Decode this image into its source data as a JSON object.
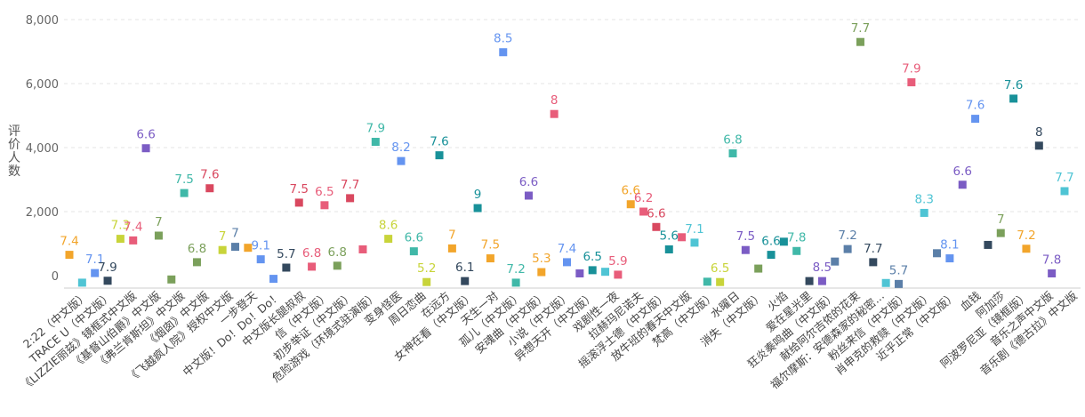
{
  "chart_data": {
    "type": "scatter",
    "ylabel": "评价人数",
    "ylim": [
      0,
      8000
    ],
    "yticks": [
      0,
      2000,
      4000,
      6000,
      8000
    ],
    "ytick_labels": [
      "0",
      "2,000",
      "4,000",
      "6,000",
      "8,000"
    ],
    "grid": true,
    "points": [
      {
        "category": "2:22（中文版）",
        "count": 650,
        "rating": "7.4",
        "color": "#f2a52b"
      },
      {
        "category": "TRACE U（中文版）",
        "count": -220,
        "rating": "",
        "color": "#4fc4d4"
      },
      {
        "category": "《LIZZIE丽兹》镜框式中文版",
        "count": 80,
        "rating": "7.1",
        "color": "#6494f0"
      },
      {
        "category": "《基督山伯爵》中文版",
        "count": -160,
        "rating": "7.9",
        "color": "#34495e"
      },
      {
        "category": "《弗兰肯斯坦》中文版",
        "count": 1150,
        "rating": "7.3",
        "color": "#c8d43a"
      },
      {
        "category": "《烟囱》中文版",
        "count": 1100,
        "rating": "7.4",
        "color": "#e85d7a"
      },
      {
        "category": "《飞越疯人院》授权中文版",
        "count": 3980,
        "rating": "6.6",
        "color": "#7b5cc4"
      },
      {
        "category": "一步登天",
        "count": 1250,
        "rating": "7",
        "color": "#7ba05b"
      },
      {
        "category": "中文版！Do！Do！Do！",
        "count": -120,
        "rating": "",
        "color": "#7ba05b"
      },
      {
        "category": "中文版长腿叔叔",
        "count": 2580,
        "rating": "7.5",
        "color": "#40b8a8"
      },
      {
        "category": "信（中文版）",
        "count": 420,
        "rating": "6.8",
        "color": "#7ba05b"
      },
      {
        "category": "初步举证（中文版）",
        "count": 2730,
        "rating": "7.6",
        "color": "#d9485f"
      },
      {
        "category": "危险游戏（环境式驻演版）",
        "count": 800,
        "rating": "7",
        "color": "#c8d43a"
      },
      {
        "category": "变身怪医",
        "count": 900,
        "rating": "7",
        "color": "#5b7fa8"
      },
      {
        "category": "周日恋曲",
        "count": 870,
        "rating": "",
        "color": "#f2a52b"
      },
      {
        "category": "在远方",
        "count": 510,
        "rating": "9.1",
        "color": "#6494f0"
      },
      {
        "category": "女神在看（中文版）",
        "count": -100,
        "rating": "",
        "color": "#6494f0"
      },
      {
        "category": "天生一对",
        "count": 250,
        "rating": "5.7",
        "color": "#34495e"
      },
      {
        "category": "孤儿（中文版）",
        "count": 2280,
        "rating": "7.5",
        "color": "#d9485f"
      },
      {
        "category": "安魂曲（中文版）",
        "count": 280,
        "rating": "6.8",
        "color": "#e85d7a"
      },
      {
        "category": "小说（中文版）",
        "count": 2200,
        "rating": "6.5",
        "color": "#e85d7a"
      },
      {
        "category": "异想天开（中文版）",
        "count": 310,
        "rating": "6.8",
        "color": "#7ba05b"
      },
      {
        "category": "戏剧性一夜",
        "count": 2420,
        "rating": "7.7",
        "color": "#d9485f"
      },
      {
        "category": "拉赫玛尼诺夫",
        "count": 820,
        "rating": "",
        "color": "#e85d7a"
      },
      {
        "category": "摇滚浮士德（中文版）",
        "count": 4180,
        "rating": "7.9",
        "color": "#40b8a8"
      },
      {
        "category": "放牛班的春天中文版",
        "count": 1150,
        "rating": "8.6",
        "color": "#c8d43a"
      },
      {
        "category": "梵高（中文版）",
        "count": 3580,
        "rating": "8.2",
        "color": "#6494f0"
      },
      {
        "category": "水曜日",
        "count": 760,
        "rating": "6.6",
        "color": "#40b8a8"
      },
      {
        "category": "消失（中文版）",
        "count": -200,
        "rating": "5.2",
        "color": "#c8d43a"
      },
      {
        "category": "火焰",
        "count": 3760,
        "rating": "7.6",
        "color": "#189199"
      },
      {
        "category": "爱在星光里",
        "count": 850,
        "rating": "7",
        "color": "#f2a52b"
      },
      {
        "category": "狂炎奏鸣曲（中文版）",
        "count": -170,
        "rating": "6.1",
        "color": "#34495e"
      },
      {
        "category": "献给阿尔吉侬的花束",
        "count": 2110,
        "rating": "9",
        "color": "#189199"
      },
      {
        "category": "福尔摩斯：安德森家的秘密...",
        "count": 540,
        "rating": "7.5",
        "color": "#f2a52b"
      },
      {
        "category": "粉丝来信（中文版）",
        "count": 6980,
        "rating": "8.5",
        "color": "#6494f0"
      },
      {
        "category": "肖申克的救赎（中文版）",
        "count": -220,
        "rating": "7.2",
        "color": "#40b8a8"
      },
      {
        "category": "近乎正常（中文版）",
        "count": 2500,
        "rating": "6.6",
        "color": "#7b5cc4"
      },
      {
        "category": "血钱",
        "count": 110,
        "rating": "5.3",
        "color": "#f2a52b"
      },
      {
        "category": "阿加莎",
        "count": 5050,
        "rating": "8",
        "color": "#e85d7a"
      },
      {
        "category": "阿波罗尼亚（镜框版）",
        "count": 420,
        "rating": "7.4",
        "color": "#6494f0"
      },
      {
        "category": "音乐之声中文版",
        "count": 70,
        "rating": "",
        "color": "#7b5cc4"
      },
      {
        "category": "音乐剧《德古拉》中文版",
        "count": 170,
        "rating": "6.5",
        "color": "#189199"
      },
      {
        "category": "",
        "count": 120,
        "rating": "",
        "color": "#4fc4d4"
      },
      {
        "category": "",
        "count": 30,
        "rating": "5.9",
        "color": "#e85d7a"
      },
      {
        "category": "",
        "count": 2230,
        "rating": "6.6",
        "color": "#f2a52b"
      },
      {
        "category": "",
        "count": 2000,
        "rating": "6.2",
        "color": "#e85d7a"
      },
      {
        "category": "",
        "count": 1520,
        "rating": "6.6",
        "color": "#d9485f"
      },
      {
        "category": "",
        "count": 820,
        "rating": "5.6",
        "color": "#189199"
      },
      {
        "category": "",
        "count": 1200,
        "rating": "",
        "color": "#e85d7a"
      },
      {
        "category": "",
        "count": 1030,
        "rating": "7.1",
        "color": "#4fc4d4"
      },
      {
        "category": "",
        "count": -190,
        "rating": "",
        "color": "#40b8a8"
      },
      {
        "category": "",
        "count": -200,
        "rating": "6.5",
        "color": "#c8d43a"
      },
      {
        "category": "",
        "count": 3820,
        "rating": "6.8",
        "color": "#40b8a8"
      },
      {
        "category": "",
        "count": 800,
        "rating": "7.5",
        "color": "#7b5cc4"
      },
      {
        "category": "",
        "count": 220,
        "rating": "",
        "color": "#7ba05b"
      },
      {
        "category": "",
        "count": 650,
        "rating": "6.6",
        "color": "#189199"
      },
      {
        "category": "",
        "count": 1060,
        "rating": "",
        "color": "#189199"
      },
      {
        "category": "",
        "count": 770,
        "rating": "7.8",
        "color": "#40b8a8"
      },
      {
        "category": "",
        "count": -170,
        "rating": "",
        "color": "#34495e"
      },
      {
        "category": "",
        "count": -170,
        "rating": "8.5",
        "color": "#7b5cc4"
      },
      {
        "category": "",
        "count": 440,
        "rating": "",
        "color": "#5b7fa8"
      },
      {
        "category": "",
        "count": 830,
        "rating": "7.2",
        "color": "#5b7fa8"
      },
      {
        "category": "",
        "count": 7300,
        "rating": "7.7",
        "color": "#7ba05b"
      },
      {
        "category": "",
        "count": 420,
        "rating": "7.7",
        "color": "#34495e"
      },
      {
        "category": "",
        "count": -230,
        "rating": "",
        "color": "#4fc4d4"
      },
      {
        "category": "",
        "count": -260,
        "rating": "5.7",
        "color": "#5b7fa8"
      },
      {
        "category": "",
        "count": 6040,
        "rating": "7.9",
        "color": "#e85d7a"
      },
      {
        "category": "",
        "count": 1960,
        "rating": "8.3",
        "color": "#4fc4d4"
      },
      {
        "category": "",
        "count": 700,
        "rating": "",
        "color": "#5b7fa8"
      },
      {
        "category": "",
        "count": 540,
        "rating": "8.1",
        "color": "#6494f0"
      },
      {
        "category": "",
        "count": 2840,
        "rating": "6.6",
        "color": "#7b5cc4"
      },
      {
        "category": "",
        "count": 4900,
        "rating": "7.6",
        "color": "#6494f0"
      },
      {
        "category": "",
        "count": 960,
        "rating": "",
        "color": "#34495e"
      },
      {
        "category": "",
        "count": 1330,
        "rating": "7",
        "color": "#7ba05b"
      },
      {
        "category": "",
        "count": 5530,
        "rating": "7.6",
        "color": "#189199"
      },
      {
        "category": "",
        "count": 840,
        "rating": "7.2",
        "color": "#f2a52b"
      },
      {
        "category": "",
        "count": 4060,
        "rating": "8",
        "color": "#34495e"
      },
      {
        "category": "",
        "count": 70,
        "rating": "7.8",
        "color": "#7b5cc4"
      },
      {
        "category": "",
        "count": 2640,
        "rating": "7.7",
        "color": "#4fc4d4"
      }
    ]
  }
}
